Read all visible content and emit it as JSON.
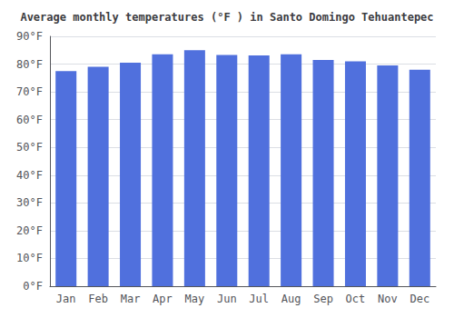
{
  "chart_data": {
    "type": "bar",
    "title": "Average monthly temperatures (°F ) in Santo Domingo Tehuantepec",
    "categories": [
      "Jan",
      "Feb",
      "Mar",
      "Apr",
      "May",
      "Jun",
      "Jul",
      "Aug",
      "Sep",
      "Oct",
      "Nov",
      "Dec"
    ],
    "values": [
      77.5,
      79.0,
      80.5,
      83.5,
      85.0,
      83.3,
      83.1,
      83.5,
      81.5,
      81.0,
      79.5,
      78.0
    ],
    "ylim": [
      0,
      90
    ],
    "yticks": [
      {
        "value": 0,
        "label": "0°F"
      },
      {
        "value": 10,
        "label": "10°F"
      },
      {
        "value": 20,
        "label": "20°F"
      },
      {
        "value": 30,
        "label": "30°F"
      },
      {
        "value": 40,
        "label": "40°F"
      },
      {
        "value": 50,
        "label": "50°F"
      },
      {
        "value": 60,
        "label": "60°F"
      },
      {
        "value": 70,
        "label": "70°F"
      },
      {
        "value": 80,
        "label": "80°F"
      },
      {
        "value": 90,
        "label": "90°F"
      }
    ],
    "grid": true
  }
}
